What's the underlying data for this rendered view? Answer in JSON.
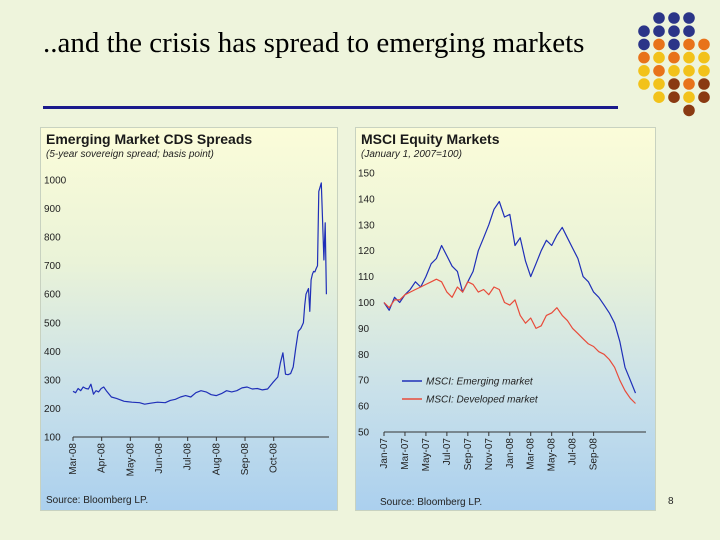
{
  "slide": {
    "title": "..and the crisis has spread to emerging markets",
    "page_number": "8"
  },
  "colors": {
    "background": "#eef4dc",
    "title_rule": "#1a1a8c",
    "emerging": "#1f2fb8",
    "developed": "#e84b3a",
    "cds_line": "#1f2fb8",
    "dot_navy": "#2b3588",
    "dot_orange": "#e8731a",
    "dot_yellow": "#f2c21a",
    "dot_brown": "#8a3a12"
  },
  "decor": {
    "dot_grid_name": "decorative-dot-grid"
  },
  "chart_data": [
    {
      "type": "line",
      "title": "Emerging Market CDS Spreads",
      "subtitle": "(5-year sovereign spread; basis point)",
      "source": "Source: Bloomberg LP.",
      "ylim": [
        100,
        1000
      ],
      "yticks": [
        "1000",
        "900",
        "800",
        "700",
        "600",
        "500",
        "400",
        "300",
        "200",
        "100"
      ],
      "xlim": [
        0,
        1
      ],
      "xticks": [
        {
          "label": "Mar-08",
          "x": 0.0
        },
        {
          "label": "Apr-08",
          "x": 0.112
        },
        {
          "label": "May-08",
          "x": 0.224
        },
        {
          "label": "Jun-08",
          "x": 0.336
        },
        {
          "label": "Jul-08",
          "x": 0.448
        },
        {
          "label": "Aug-08",
          "x": 0.56
        },
        {
          "label": "Sep-08",
          "x": 0.672
        },
        {
          "label": "Oct-08",
          "x": 0.784
        }
      ],
      "series": [
        {
          "name": "EM CDS spread",
          "x": [
            0.0,
            0.01,
            0.02,
            0.03,
            0.04,
            0.05,
            0.06,
            0.07,
            0.08,
            0.09,
            0.1,
            0.11,
            0.12,
            0.13,
            0.15,
            0.17,
            0.2,
            0.23,
            0.26,
            0.28,
            0.3,
            0.33,
            0.36,
            0.38,
            0.4,
            0.42,
            0.44,
            0.46,
            0.48,
            0.5,
            0.52,
            0.54,
            0.56,
            0.58,
            0.6,
            0.62,
            0.64,
            0.66,
            0.68,
            0.7,
            0.72,
            0.74,
            0.76,
            0.78,
            0.8,
            0.81,
            0.82,
            0.83,
            0.84,
            0.85,
            0.86,
            0.87,
            0.88,
            0.89,
            0.9,
            0.905,
            0.91,
            0.915,
            0.92,
            0.925,
            0.93,
            0.935,
            0.94,
            0.945,
            0.95,
            0.955,
            0.96,
            0.97,
            0.98,
            0.985,
            0.99
          ],
          "values": [
            260,
            255,
            270,
            262,
            275,
            270,
            268,
            285,
            250,
            262,
            258,
            270,
            275,
            262,
            240,
            235,
            225,
            222,
            220,
            215,
            218,
            222,
            220,
            228,
            232,
            240,
            245,
            240,
            255,
            262,
            258,
            248,
            245,
            252,
            262,
            258,
            262,
            272,
            275,
            268,
            270,
            265,
            268,
            290,
            310,
            360,
            395,
            320,
            318,
            322,
            345,
            410,
            470,
            480,
            500,
            560,
            600,
            610,
            620,
            540,
            650,
            670,
            680,
            678,
            690,
            700,
            960,
            990,
            720,
            850,
            600
          ]
        }
      ]
    },
    {
      "type": "line",
      "title": "MSCI Equity Markets",
      "subtitle": "(January 1, 2007=100)",
      "source": "Source: Bloomberg LP.",
      "ylim": [
        50,
        150
      ],
      "yticks": [
        "150",
        "140",
        "130",
        "120",
        "110",
        "100",
        "90",
        "80",
        "70",
        "60",
        "50"
      ],
      "xlim": [
        0,
        1
      ],
      "xticks": [
        {
          "label": "Jan-07",
          "x": 0.0
        },
        {
          "label": "Mar-07",
          "x": 0.08
        },
        {
          "label": "May-07",
          "x": 0.16
        },
        {
          "label": "Jul-07",
          "x": 0.24
        },
        {
          "label": "Sep-07",
          "x": 0.32
        },
        {
          "label": "Nov-07",
          "x": 0.4
        },
        {
          "label": "Jan-08",
          "x": 0.48
        },
        {
          "label": "Mar-08",
          "x": 0.56
        },
        {
          "label": "May-08",
          "x": 0.64
        },
        {
          "label": "Jul-08",
          "x": 0.72
        },
        {
          "label": "Sep-08",
          "x": 0.8
        }
      ],
      "legend": [
        {
          "label": "MSCI: Emerging market",
          "color": "#1f2fb8"
        },
        {
          "label": "MSCI: Developed market",
          "color": "#e84b3a"
        }
      ],
      "series": [
        {
          "name": "MSCI: Emerging market",
          "color": "#1f2fb8",
          "x": [
            0.0,
            0.02,
            0.04,
            0.06,
            0.08,
            0.1,
            0.12,
            0.14,
            0.16,
            0.18,
            0.2,
            0.22,
            0.24,
            0.26,
            0.28,
            0.3,
            0.32,
            0.34,
            0.36,
            0.38,
            0.4,
            0.42,
            0.44,
            0.46,
            0.48,
            0.5,
            0.52,
            0.54,
            0.56,
            0.58,
            0.6,
            0.62,
            0.64,
            0.66,
            0.68,
            0.7,
            0.72,
            0.74,
            0.76,
            0.78,
            0.8,
            0.82,
            0.84,
            0.86,
            0.88,
            0.9,
            0.92,
            0.94,
            0.96
          ],
          "values": [
            100,
            97,
            102,
            100,
            103,
            105,
            108,
            106,
            110,
            115,
            117,
            122,
            118,
            114,
            112,
            104,
            108,
            112,
            120,
            125,
            130,
            136,
            139,
            133,
            134,
            122,
            125,
            116,
            110,
            115,
            120,
            124,
            122,
            126,
            129,
            125,
            121,
            117,
            110,
            108,
            104,
            102,
            99,
            96,
            92,
            85,
            75,
            70,
            65
          ]
        },
        {
          "name": "MSCI: Developed market",
          "color": "#e84b3a",
          "x": [
            0.0,
            0.02,
            0.04,
            0.06,
            0.08,
            0.1,
            0.12,
            0.14,
            0.16,
            0.18,
            0.2,
            0.22,
            0.24,
            0.26,
            0.28,
            0.3,
            0.32,
            0.34,
            0.36,
            0.38,
            0.4,
            0.42,
            0.44,
            0.46,
            0.48,
            0.5,
            0.52,
            0.54,
            0.56,
            0.58,
            0.6,
            0.62,
            0.64,
            0.66,
            0.68,
            0.7,
            0.72,
            0.74,
            0.76,
            0.78,
            0.8,
            0.82,
            0.84,
            0.86,
            0.88,
            0.9,
            0.92,
            0.94,
            0.96
          ],
          "values": [
            100,
            98,
            101,
            101,
            103,
            104,
            105,
            106,
            107,
            108,
            109,
            108,
            104,
            102,
            106,
            104,
            108,
            107,
            104,
            105,
            103,
            106,
            105,
            100,
            99,
            101,
            95,
            92,
            94,
            90,
            91,
            95,
            96,
            98,
            95,
            93,
            90,
            88,
            86,
            84,
            83,
            81,
            80,
            78,
            75,
            70,
            66,
            63,
            61
          ]
        }
      ]
    }
  ]
}
